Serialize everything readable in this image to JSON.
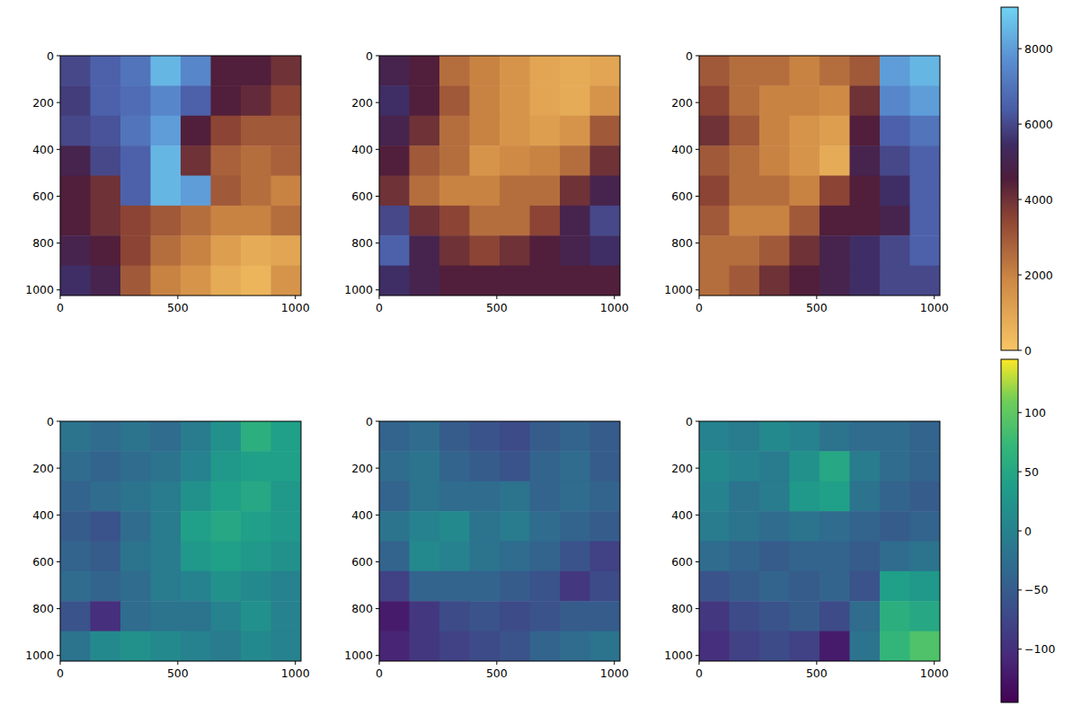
{
  "chart_data": [
    {
      "type": "heatmap",
      "xlim": [
        0,
        1024
      ],
      "ylim": [
        1024,
        0
      ],
      "xticks": [
        0,
        500,
        1000
      ],
      "yticks": [
        0,
        200,
        400,
        600,
        800,
        1000
      ],
      "zlim": [
        0,
        9100
      ],
      "cells": [
        [
          6000,
          6500,
          7000,
          8500,
          7500,
          4500,
          4500,
          4000
        ],
        [
          5800,
          6500,
          6800,
          7500,
          6500,
          4500,
          4200,
          3500
        ],
        [
          6000,
          6200,
          7000,
          8000,
          4500,
          3500,
          3000,
          3000
        ],
        [
          5000,
          6000,
          6500,
          8500,
          4000,
          2800,
          2500,
          2800
        ],
        [
          4500,
          4000,
          6500,
          8500,
          8000,
          3000,
          2500,
          2000
        ],
        [
          4500,
          4000,
          3500,
          3000,
          2500,
          2000,
          2000,
          2500
        ],
        [
          5000,
          4500,
          3500,
          2500,
          2000,
          1200,
          800,
          1000
        ],
        [
          5500,
          5000,
          3000,
          2000,
          1500,
          800,
          500,
          1500
        ]
      ]
    },
    {
      "type": "heatmap",
      "xlim": [
        0,
        1024
      ],
      "ylim": [
        1024,
        0
      ],
      "xticks": [
        0,
        500,
        1000
      ],
      "yticks": [
        0,
        200,
        400,
        600,
        800,
        1000
      ],
      "zlim": [
        0,
        9100
      ],
      "cells": [
        [
          5000,
          4500,
          2500,
          2000,
          1500,
          1000,
          800,
          1000
        ],
        [
          5500,
          4500,
          3000,
          2000,
          1500,
          1000,
          800,
          1500
        ],
        [
          5000,
          4000,
          2500,
          2000,
          1500,
          1200,
          1500,
          3000
        ],
        [
          4500,
          3000,
          2500,
          1500,
          1800,
          2000,
          2500,
          4000
        ],
        [
          4000,
          2500,
          2000,
          2000,
          2500,
          2500,
          4000,
          5000
        ],
        [
          6000,
          4000,
          3500,
          2500,
          2500,
          3500,
          5000,
          6000
        ],
        [
          6500,
          5000,
          4000,
          3500,
          4000,
          4500,
          5000,
          5500
        ],
        [
          5500,
          5000,
          4500,
          4500,
          4500,
          4500,
          4500,
          4500
        ]
      ]
    },
    {
      "type": "heatmap",
      "xlim": [
        0,
        1024
      ],
      "ylim": [
        1024,
        0
      ],
      "xticks": [
        0,
        500,
        1000
      ],
      "yticks": [
        0,
        200,
        400,
        600,
        800,
        1000
      ],
      "zlim": [
        0,
        9100
      ],
      "cells": [
        [
          3000,
          2500,
          2500,
          2000,
          2500,
          3000,
          8000,
          8500
        ],
        [
          3500,
          2500,
          2000,
          2000,
          1800,
          4000,
          7500,
          8000
        ],
        [
          4000,
          3000,
          2000,
          1500,
          1200,
          4500,
          6500,
          7000
        ],
        [
          3000,
          2500,
          2000,
          1500,
          800,
          5000,
          6000,
          6500
        ],
        [
          3500,
          2500,
          2500,
          2000,
          3500,
          4500,
          5500,
          6500
        ],
        [
          3000,
          2000,
          2000,
          3000,
          4500,
          4500,
          5000,
          6500
        ],
        [
          2500,
          2500,
          3000,
          4000,
          5000,
          5500,
          6000,
          6500
        ],
        [
          2500,
          3000,
          4000,
          4500,
          5000,
          5500,
          6000,
          6000
        ]
      ],
      "colorbar": {
        "range": [
          0,
          9100
        ],
        "ticks": [
          0,
          2000,
          4000,
          6000,
          8000
        ]
      }
    },
    {
      "type": "heatmap",
      "xlim": [
        0,
        1024
      ],
      "ylim": [
        1024,
        0
      ],
      "xticks": [
        0,
        500,
        1000
      ],
      "yticks": [
        0,
        200,
        400,
        600,
        800,
        1000
      ],
      "zlim": [
        -145,
        145
      ],
      "cells": [
        [
          -20,
          -30,
          -20,
          -30,
          -10,
          20,
          60,
          40
        ],
        [
          -30,
          -40,
          -30,
          -20,
          0,
          30,
          40,
          40
        ],
        [
          -40,
          -30,
          -20,
          -10,
          20,
          40,
          50,
          30
        ],
        [
          -50,
          -60,
          -30,
          -10,
          40,
          50,
          40,
          30
        ],
        [
          -40,
          -50,
          -20,
          -10,
          30,
          40,
          30,
          20
        ],
        [
          -30,
          -40,
          -30,
          -10,
          0,
          20,
          10,
          0
        ],
        [
          -60,
          -100,
          -30,
          -20,
          -20,
          0,
          20,
          0
        ],
        [
          -20,
          10,
          20,
          10,
          0,
          -10,
          10,
          0
        ]
      ]
    },
    {
      "type": "heatmap",
      "xlim": [
        0,
        1024
      ],
      "ylim": [
        1024,
        0
      ],
      "xticks": [
        0,
        500,
        1000
      ],
      "yticks": [
        0,
        200,
        400,
        600,
        800,
        1000
      ],
      "zlim": [
        -145,
        145
      ],
      "cells": [
        [
          -40,
          -30,
          -50,
          -60,
          -70,
          -50,
          -40,
          -50
        ],
        [
          -30,
          -20,
          -40,
          -50,
          -60,
          -40,
          -30,
          -50
        ],
        [
          -40,
          -20,
          -30,
          -30,
          -20,
          -40,
          -30,
          -40
        ],
        [
          -20,
          0,
          10,
          -20,
          -10,
          -30,
          -40,
          -50
        ],
        [
          -40,
          10,
          0,
          -20,
          -30,
          -40,
          -60,
          -80
        ],
        [
          -80,
          -40,
          -40,
          -40,
          -50,
          -60,
          -90,
          -70
        ],
        [
          -120,
          -90,
          -70,
          -60,
          -70,
          -60,
          -50,
          -50
        ],
        [
          -110,
          -90,
          -80,
          -70,
          -60,
          -40,
          -30,
          -20
        ]
      ]
    },
    {
      "type": "heatmap",
      "xlim": [
        0,
        1024
      ],
      "ylim": [
        1024,
        0
      ],
      "xticks": [
        0,
        500,
        1000
      ],
      "yticks": [
        0,
        200,
        400,
        600,
        800,
        1000
      ],
      "zlim": [
        -145,
        145
      ],
      "cells": [
        [
          0,
          -10,
          10,
          0,
          -20,
          -30,
          -30,
          -40
        ],
        [
          10,
          0,
          -10,
          20,
          50,
          -10,
          -30,
          -40
        ],
        [
          0,
          -20,
          -10,
          30,
          40,
          -20,
          -40,
          -50
        ],
        [
          -10,
          -20,
          -30,
          -20,
          -30,
          -40,
          -50,
          -40
        ],
        [
          -30,
          -40,
          -50,
          -40,
          -40,
          -50,
          -30,
          -20
        ],
        [
          -60,
          -50,
          -40,
          -50,
          -40,
          -60,
          40,
          30
        ],
        [
          -90,
          -70,
          -60,
          -50,
          -70,
          -30,
          60,
          50
        ],
        [
          -100,
          -80,
          -70,
          -80,
          -120,
          -20,
          70,
          90
        ]
      ],
      "colorbar": {
        "range": [
          -145,
          145
        ],
        "ticks": [
          {
            "value": -100,
            "label": "−100"
          },
          {
            "value": -50,
            "label": "−50"
          },
          0,
          50,
          100
        ]
      }
    }
  ]
}
